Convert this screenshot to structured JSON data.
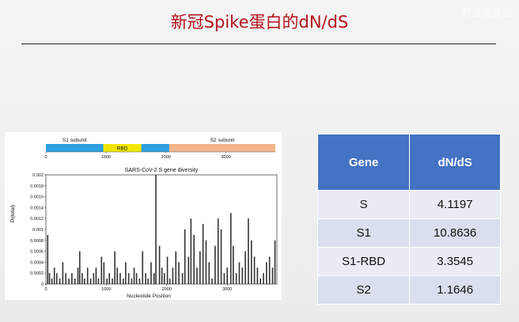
{
  "slide": {
    "title": "新冠Spike蛋白的dN/dS",
    "watermark": "叮当猫爱嗑"
  },
  "colors": {
    "title": "#b3121b",
    "s1_bar": "#2e9fe0",
    "rbd_bar": "#f2e600",
    "s2_bar": "#f2b48a",
    "header_bg": "#4472c4",
    "spikes": "#333333"
  },
  "chart_data": {
    "type": "bar",
    "title": "SARS-CoV-2 S gene diversity",
    "xlabel": "Nucleotide Position",
    "ylabel": "Pi(total)",
    "xlim": [
      0,
      3822
    ],
    "ylim": [
      0,
      0.002
    ],
    "x_ticks": [
      "0",
      "1000",
      "2000",
      "3000"
    ],
    "y_ticks": [
      "0",
      "0.0002",
      "0.0004",
      "0.0006",
      "0.0008",
      "0.001",
      "0.0012",
      "0.0014",
      "0.0016",
      "0.0018",
      "0.002"
    ],
    "domains": [
      {
        "name": "S1 subunit",
        "start": 0,
        "end": 2055
      },
      {
        "name": "RBD",
        "start": 955,
        "end": 1590
      },
      {
        "name": "S2 subunit",
        "start": 2055,
        "end": 3822
      }
    ],
    "domain_ticks": [
      "0",
      "1000",
      "2000",
      "3000"
    ],
    "grid": false,
    "series": [
      {
        "x": [
          30,
          60,
          100,
          140,
          180,
          230,
          280,
          330,
          380,
          430,
          480,
          530,
          560,
          600,
          640,
          690,
          740,
          790,
          830,
          870,
          920,
          960,
          1010,
          1050,
          1100,
          1140,
          1180,
          1230,
          1280,
          1320,
          1370,
          1420,
          1460,
          1500,
          1550,
          1600,
          1650,
          1690,
          1740,
          1790,
          1820,
          1880,
          1920,
          1960,
          2010,
          2050,
          2100,
          2150,
          2200,
          2260,
          2300,
          2360,
          2400,
          2450,
          2500,
          2550,
          2600,
          2650,
          2700,
          2750,
          2800,
          2850,
          2900,
          2950,
          3000,
          3060,
          3100,
          3150,
          3200,
          3250,
          3300,
          3350,
          3400,
          3450,
          3500,
          3550,
          3600,
          3650,
          3700,
          3750,
          3790
        ],
        "y": [
          0.0009,
          0.0002,
          0.0001,
          0.0003,
          0.0002,
          0.0001,
          0.0004,
          0.0002,
          0.0001,
          0.0002,
          0.0001,
          0.0003,
          0.0006,
          0.0002,
          0.0001,
          0.0003,
          0.0001,
          0.0002,
          0.0003,
          0.0001,
          0.0005,
          0.0004,
          0.0001,
          0.0002,
          0.0001,
          0.0006,
          0.0003,
          0.0002,
          0.0001,
          0.0004,
          0.0002,
          0.0001,
          0.0003,
          0.0002,
          0.0001,
          0.0006,
          0.0002,
          0.0001,
          0.0004,
          0.0002,
          0.002,
          0.0007,
          0.0003,
          0.0002,
          0.0005,
          0.0001,
          0.0003,
          0.0006,
          0.0004,
          0.0002,
          0.001,
          0.0005,
          0.0012,
          0.0009,
          0.0003,
          0.0006,
          0.0011,
          0.0008,
          0.0004,
          0.0001,
          0.0007,
          0.0012,
          0.001,
          0.0002,
          0.0003,
          0.0013,
          0.0007,
          0.0002,
          0.0004,
          0.0003,
          0.0006,
          0.0012,
          0.0008,
          0.0005,
          0.0003,
          0.0001,
          0.0002,
          0.0004,
          0.0005,
          0.0003,
          0.0008
        ]
      }
    ]
  },
  "table": {
    "headers": [
      "Gene",
      "dN/dS"
    ],
    "rows": [
      {
        "gene": "S",
        "value": "4.1197"
      },
      {
        "gene": "S1",
        "value": "10.8636"
      },
      {
        "gene": "S1-RBD",
        "value": "3.3545"
      },
      {
        "gene": "S2",
        "value": "1.1646"
      }
    ]
  }
}
